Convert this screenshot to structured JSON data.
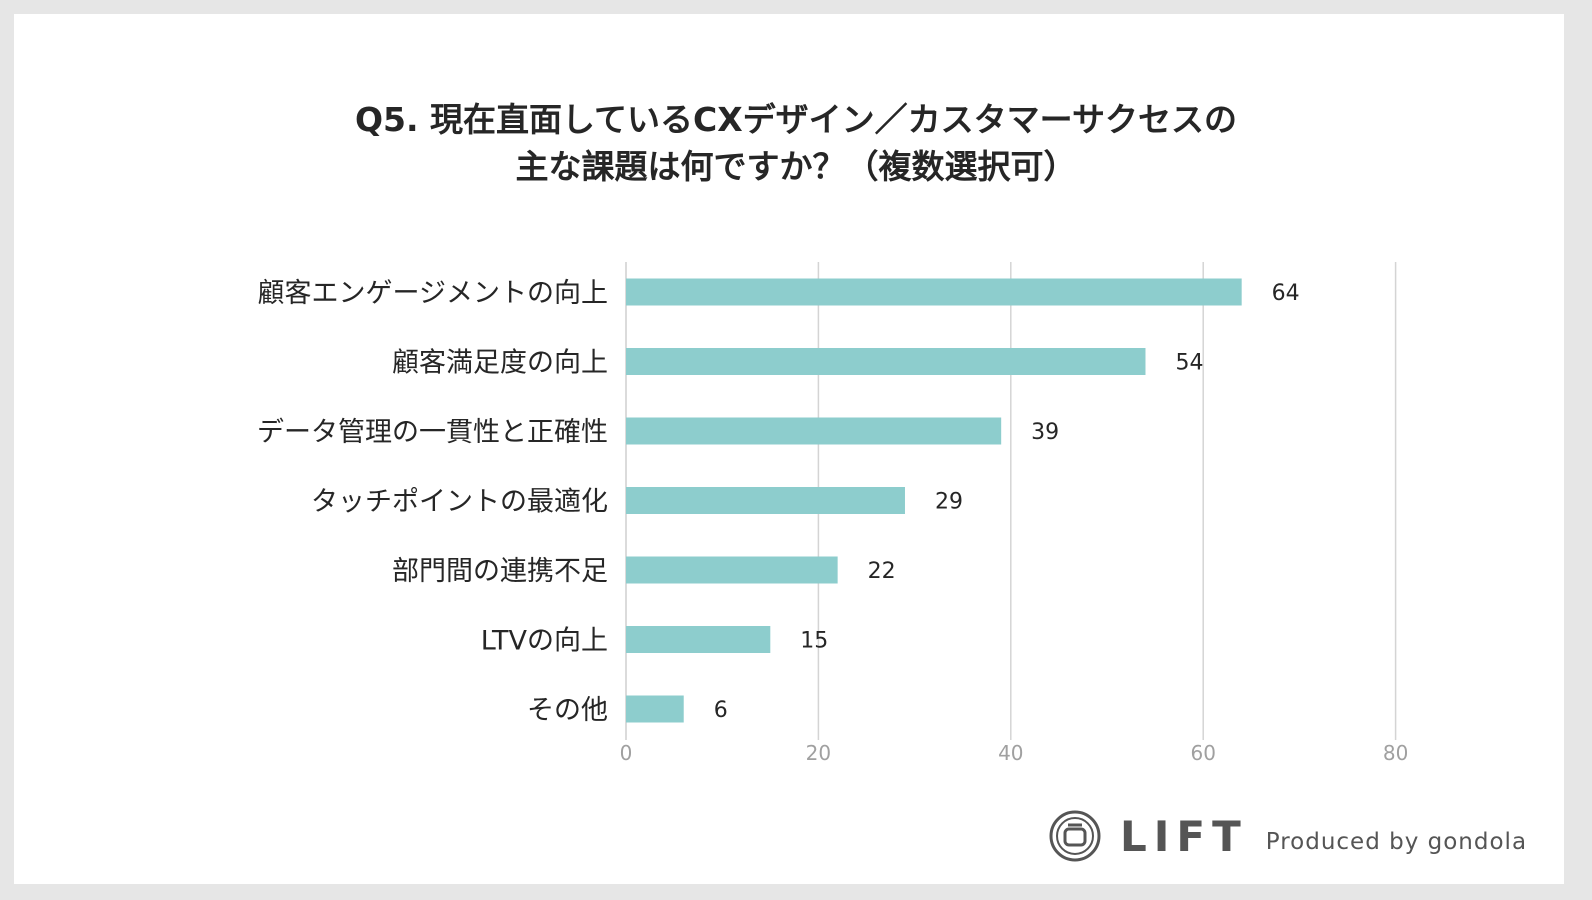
{
  "chart_data": {
    "type": "bar",
    "orientation": "horizontal",
    "title_lines": [
      "Q5. 現在直面しているCXデザイン／カスタマーサクセスの",
      "主な課題は何ですか？（複数選択可）"
    ],
    "categories": [
      "顧客エンゲージメントの向上",
      "顧客満足度の向上",
      "データ管理の一貫性と正確性",
      "タッチポイントの最適化",
      "部門間の連携不足",
      "LTVの向上",
      "その他"
    ],
    "values": [
      64,
      54,
      39,
      29,
      22,
      15,
      6
    ],
    "xlim": [
      0,
      80
    ],
    "xticks": [
      "0",
      "20",
      "40",
      "60",
      "80"
    ],
    "grid": true,
    "bar_color": "#8dcdcd"
  },
  "footer": {
    "logo_text": "LIFT",
    "produced_by": "Produced by gondola"
  }
}
